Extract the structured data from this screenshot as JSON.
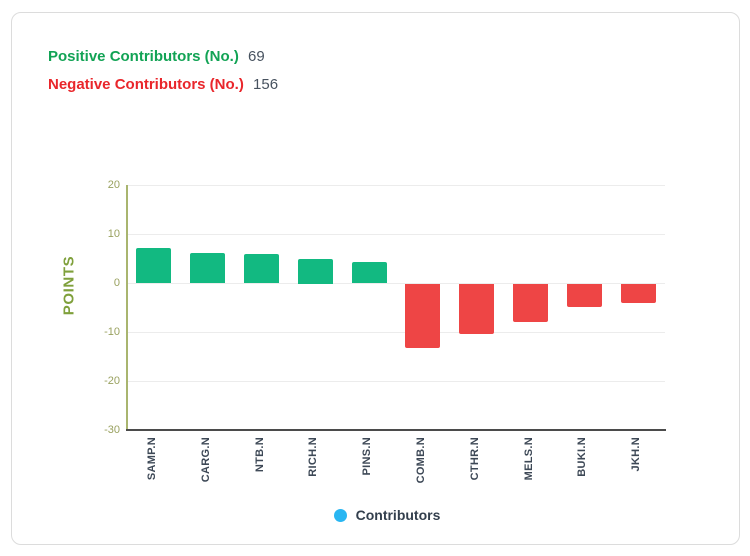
{
  "header": {
    "positive_label": "Positive Contributors (No.)",
    "positive_value": "69",
    "negative_label": "Negative Contributors (No.)",
    "negative_value": "156"
  },
  "chart_data": {
    "type": "bar",
    "categories": [
      "SAMP.N",
      "CARG.N",
      "NTB.N",
      "RICH.N",
      "PINS.N",
      "COMB.N",
      "CTHR.N",
      "MELS.N",
      "BUKI.N",
      "JKH.N"
    ],
    "values": [
      7.2,
      6.1,
      5.9,
      5.0,
      4.3,
      -13.2,
      -10.4,
      -8.0,
      -4.9,
      -4.1
    ],
    "title": "",
    "xlabel": "",
    "ylabel": "POINTS",
    "ylim": [
      -30,
      20
    ],
    "yticks": [
      20,
      10,
      0,
      -10,
      -20,
      -30
    ],
    "grid": true,
    "legend": {
      "label": "Contributors",
      "marker_color": "#29b6f2",
      "position": "bottom"
    },
    "colors": {
      "positive": "#12b981",
      "negative": "#ee4545"
    },
    "layout_hints": {
      "x_tick_rotation": -90,
      "bar_gap_ratio": 0.35
    }
  }
}
